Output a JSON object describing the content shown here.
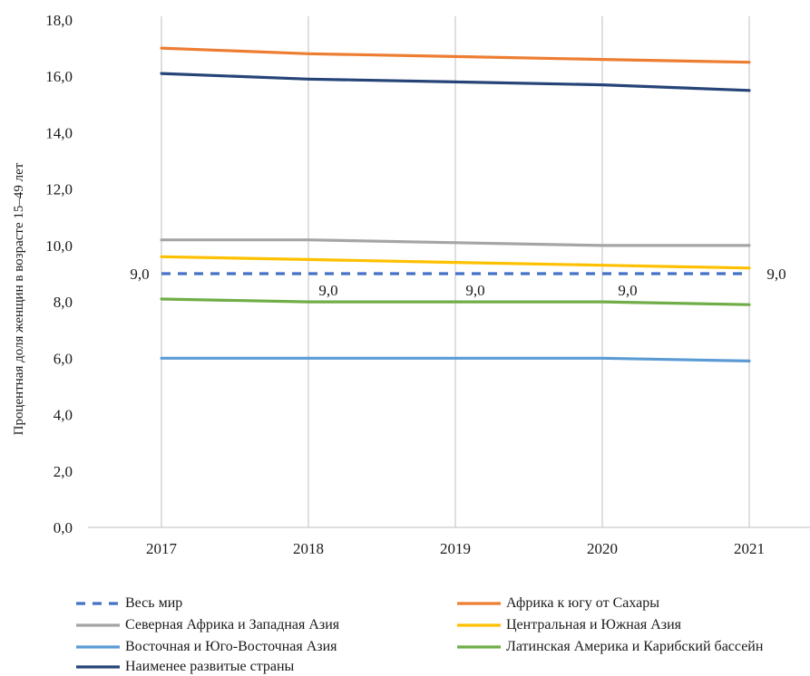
{
  "chart_data": {
    "type": "line",
    "ylabel": "Процентная доля женщин в возрасте 15–49 лет",
    "xlabel": "",
    "ylim": [
      0,
      18
    ],
    "yticks": [
      "0,0",
      "2,0",
      "4,0",
      "6,0",
      "8,0",
      "10,0",
      "12,0",
      "14,0",
      "16,0",
      "18,0"
    ],
    "categories": [
      "2017",
      "2018",
      "2019",
      "2020",
      "2021"
    ],
    "grid": "vertical",
    "legend_position": "bottom",
    "series": [
      {
        "name": "Весь мир",
        "values": [
          9.0,
          9.0,
          9.0,
          9.0,
          9.0
        ],
        "color": "#4472C4",
        "dashed": true,
        "labels": [
          "9,0",
          "9,0",
          "9,0",
          "9,0",
          "9,0"
        ]
      },
      {
        "name": "Африка к югу от Сахары",
        "values": [
          17.0,
          16.8,
          16.7,
          16.6,
          16.5
        ],
        "color": "#ED7D31",
        "dashed": false
      },
      {
        "name": "Северная Африка и Западная Азия",
        "values": [
          10.2,
          10.2,
          10.1,
          10.0,
          10.0
        ],
        "color": "#A5A5A5",
        "dashed": false
      },
      {
        "name": "Центральная и Южная Азия",
        "values": [
          9.6,
          9.5,
          9.4,
          9.3,
          9.2
        ],
        "color": "#FFC000",
        "dashed": false
      },
      {
        "name": "Восточная и Юго-Восточная Азия",
        "values": [
          6.0,
          6.0,
          6.0,
          6.0,
          5.9
        ],
        "color": "#5B9BD5",
        "dashed": false
      },
      {
        "name": "Латинская Америка и Карибский бассейн",
        "values": [
          8.1,
          8.0,
          8.0,
          8.0,
          7.9
        ],
        "color": "#70AD47",
        "dashed": false
      },
      {
        "name": "Наименее развитые страны",
        "values": [
          16.1,
          15.9,
          15.8,
          15.7,
          15.5
        ],
        "color": "#264478",
        "dashed": false
      }
    ]
  }
}
